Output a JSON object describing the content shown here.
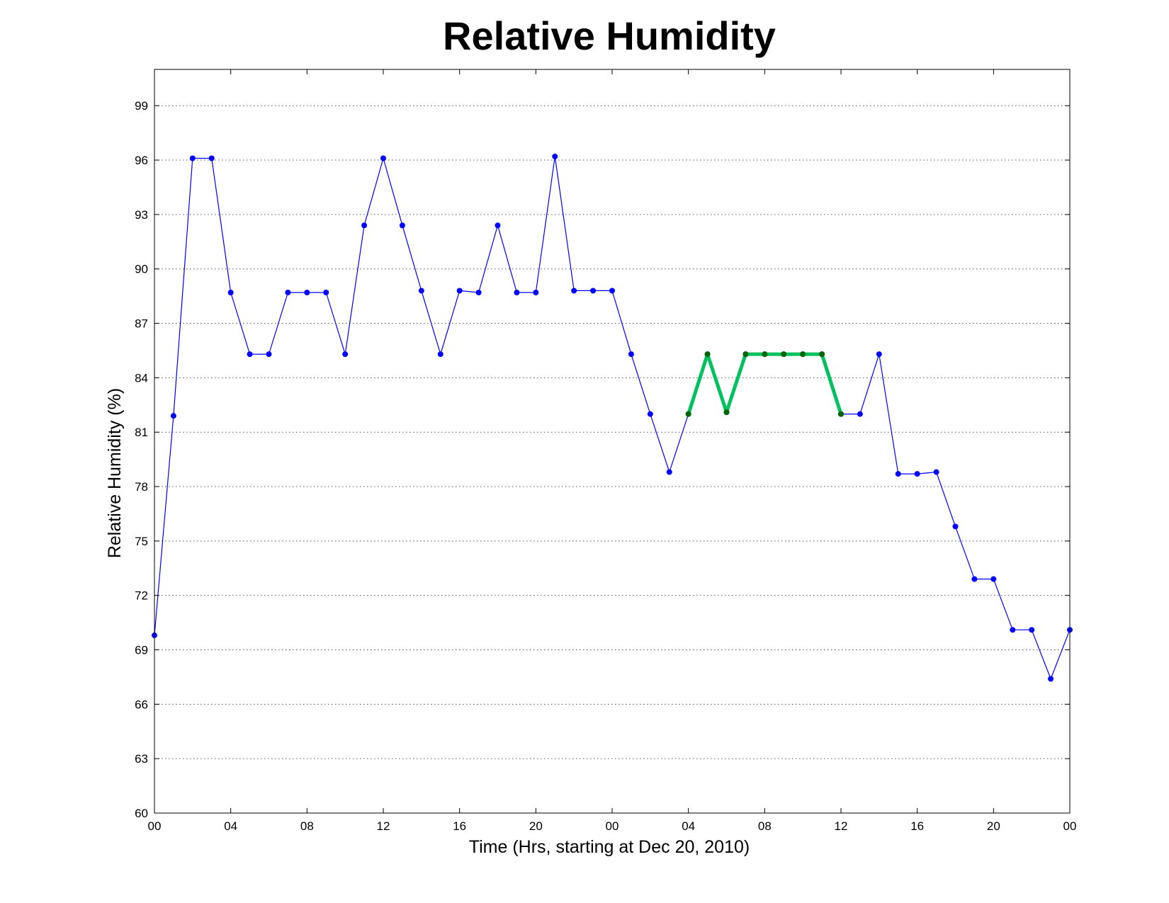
{
  "chart_data": {
    "type": "line",
    "title": "Relative Humidity",
    "xlabel": "Time (Hrs, starting at Dec 20, 2010)",
    "ylabel": "Relative Humidity (%)",
    "ylim": [
      60,
      101
    ],
    "xlim": [
      0,
      48
    ],
    "grid": "horizontal dotted",
    "legend": "none",
    "x_ticks": {
      "positions": [
        0,
        4,
        8,
        12,
        16,
        20,
        24,
        28,
        32,
        36,
        40,
        44,
        48
      ],
      "labels": [
        "00",
        "04",
        "08",
        "12",
        "16",
        "20",
        "00",
        "04",
        "08",
        "12",
        "16",
        "20",
        "00"
      ]
    },
    "y_ticks": [
      60,
      63,
      66,
      69,
      72,
      75,
      78,
      81,
      84,
      87,
      90,
      93,
      96,
      99
    ],
    "series": [
      {
        "color": "#0000ff",
        "marker_color": "#0000ff",
        "line_width": "thin",
        "x": [
          0,
          1,
          2,
          3,
          4,
          5,
          6,
          7,
          8,
          9,
          10,
          11,
          12,
          13,
          14,
          15,
          16,
          17,
          18,
          19,
          20,
          21,
          22,
          23,
          24,
          25,
          26,
          27,
          28,
          29,
          30,
          31,
          32,
          33,
          34,
          35,
          36,
          37,
          38,
          39,
          40,
          41,
          42,
          43,
          44,
          45,
          46,
          47,
          48
        ],
        "y": [
          69.8,
          81.9,
          96.1,
          96.1,
          88.7,
          85.3,
          85.3,
          88.7,
          88.7,
          88.7,
          85.3,
          92.4,
          96.1,
          92.4,
          88.8,
          85.3,
          88.8,
          88.7,
          92.4,
          88.7,
          88.7,
          96.2,
          88.8,
          88.8,
          88.8,
          85.3,
          82.0,
          78.8,
          82.0,
          85.3,
          82.1,
          85.3,
          85.3,
          85.3,
          85.3,
          85.3,
          82.0,
          82.0,
          85.3,
          78.7,
          78.7,
          78.8,
          75.8,
          72.9,
          72.9,
          70.1,
          70.1,
          67.4,
          70.1
        ]
      },
      {
        "color": "#00c060",
        "marker_color": "#006400",
        "line_width": "thick",
        "x": [
          28,
          29,
          30,
          31,
          32,
          33,
          34,
          35,
          36
        ],
        "y": [
          82.0,
          85.3,
          82.1,
          85.3,
          85.3,
          85.3,
          85.3,
          85.3,
          82.0
        ]
      }
    ]
  }
}
